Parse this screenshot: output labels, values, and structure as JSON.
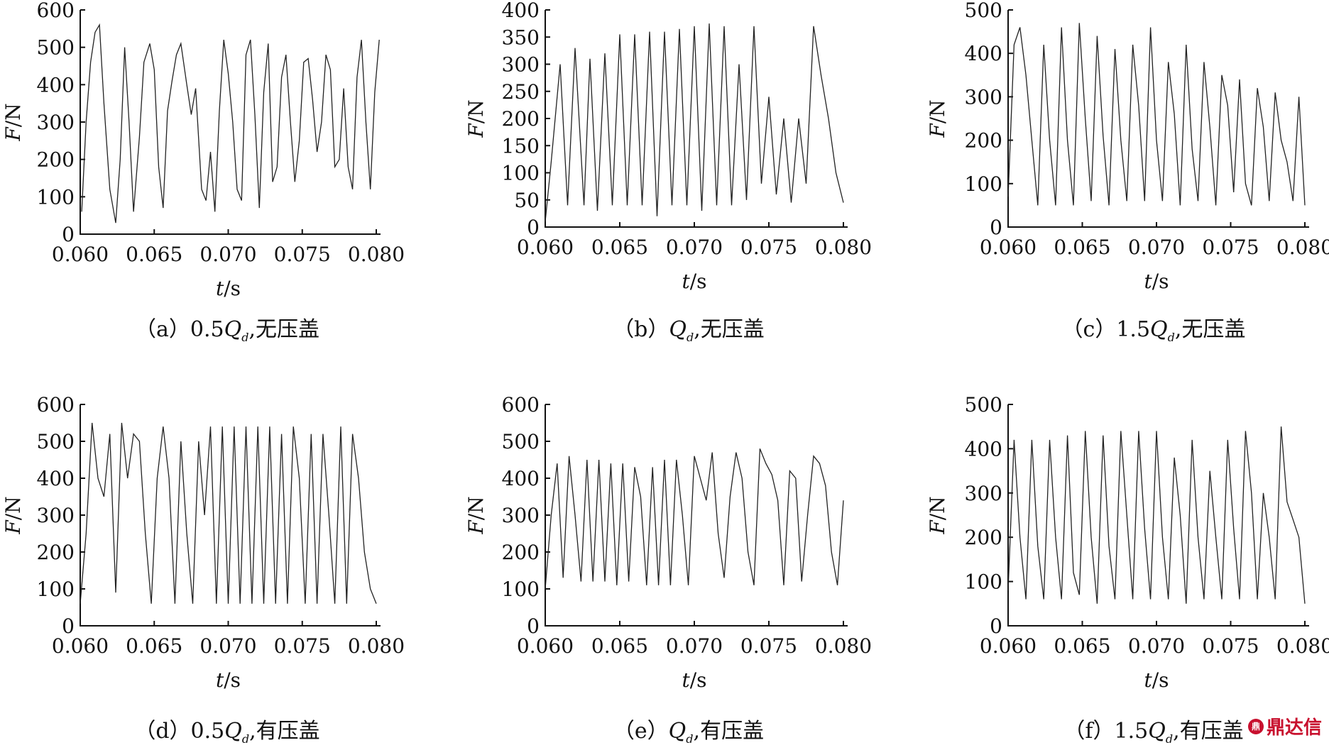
{
  "chart_data": [
    {
      "type": "line",
      "panel": "a",
      "caption_prefix": "（a）0.5",
      "caption_Q": "Q",
      "caption_sub": "d",
      "caption_suffix": ",无压盖",
      "xlabel_var": "t",
      "xlabel_unit": "/s",
      "ylabel_var": "F",
      "ylabel_unit": "/N",
      "xlim": [
        0.06,
        0.08
      ],
      "ylim": [
        0,
        600
      ],
      "xticks": [
        "0.060",
        "0.065",
        "0.070",
        "0.075",
        "0.080"
      ],
      "yticks": [
        0,
        100,
        200,
        300,
        400,
        500,
        600
      ],
      "x": [
        0.0601,
        0.0604,
        0.0607,
        0.061,
        0.0613,
        0.0616,
        0.062,
        0.0624,
        0.0627,
        0.063,
        0.0633,
        0.0636,
        0.064,
        0.0643,
        0.0647,
        0.065,
        0.0653,
        0.0656,
        0.0659,
        0.0662,
        0.0665,
        0.0668,
        0.0672,
        0.0675,
        0.0678,
        0.0682,
        0.0685,
        0.0688,
        0.0691,
        0.0694,
        0.0697,
        0.07,
        0.0703,
        0.0706,
        0.0709,
        0.0712,
        0.0715,
        0.0718,
        0.0721,
        0.0724,
        0.0727,
        0.073,
        0.0733,
        0.0736,
        0.0739,
        0.0742,
        0.0745,
        0.0748,
        0.0751,
        0.0754,
        0.0757,
        0.076,
        0.0763,
        0.0766,
        0.0769,
        0.0772,
        0.0775,
        0.0778,
        0.0781,
        0.0784,
        0.0787,
        0.079,
        0.0793,
        0.0796,
        0.0799,
        0.0802
      ],
      "y": [
        60,
        300,
        460,
        540,
        560,
        350,
        120,
        30,
        200,
        500,
        300,
        60,
        260,
        460,
        510,
        440,
        180,
        70,
        330,
        410,
        480,
        510,
        400,
        320,
        390,
        120,
        90,
        220,
        60,
        330,
        520,
        430,
        300,
        120,
        90,
        480,
        520,
        320,
        70,
        380,
        510,
        140,
        180,
        420,
        480,
        300,
        140,
        250,
        460,
        470,
        360,
        220,
        300,
        480,
        440,
        180,
        200,
        390,
        180,
        120,
        420,
        520,
        300,
        120,
        380,
        520
      ]
    },
    {
      "type": "line",
      "panel": "b",
      "caption_prefix": "（b）",
      "caption_Q": "Q",
      "caption_sub": "d",
      "caption_suffix": ",无压盖",
      "xlabel_var": "t",
      "xlabel_unit": "/s",
      "ylabel_var": "F",
      "ylabel_unit": "/N",
      "xlim": [
        0.06,
        0.08
      ],
      "ylim": [
        0,
        400
      ],
      "xticks": [
        "0.060",
        "0.065",
        "0.070",
        "0.075",
        "0.080"
      ],
      "yticks": [
        0,
        50,
        100,
        150,
        200,
        250,
        300,
        350,
        400
      ],
      "x": [
        0.06,
        0.0604,
        0.061,
        0.0615,
        0.062,
        0.0626,
        0.063,
        0.0635,
        0.064,
        0.0645,
        0.065,
        0.0655,
        0.066,
        0.0665,
        0.067,
        0.0675,
        0.068,
        0.0685,
        0.069,
        0.0695,
        0.07,
        0.0705,
        0.071,
        0.0715,
        0.072,
        0.0725,
        0.073,
        0.0735,
        0.074,
        0.0745,
        0.075,
        0.0755,
        0.076,
        0.0765,
        0.077,
        0.0775,
        0.078,
        0.0785,
        0.079,
        0.0795,
        0.08
      ],
      "y": [
        10,
        120,
        300,
        40,
        330,
        40,
        310,
        30,
        320,
        40,
        355,
        40,
        355,
        40,
        360,
        20,
        360,
        40,
        365,
        40,
        370,
        30,
        375,
        40,
        370,
        40,
        300,
        50,
        370,
        80,
        240,
        60,
        200,
        45,
        200,
        80,
        370,
        280,
        200,
        100,
        45
      ]
    },
    {
      "type": "line",
      "panel": "c",
      "caption_prefix": "（c）1.5",
      "caption_Q": "Q",
      "caption_sub": "d",
      "caption_suffix": ",无压盖",
      "xlabel_var": "t",
      "xlabel_unit": "/s",
      "ylabel_var": "F",
      "ylabel_unit": "/N",
      "xlim": [
        0.06,
        0.08
      ],
      "ylim": [
        0,
        500
      ],
      "xticks": [
        "0.060",
        "0.065",
        "0.070",
        "0.075",
        "0.080"
      ],
      "yticks": [
        0,
        100,
        200,
        300,
        400,
        500
      ],
      "x": [
        0.06,
        0.0604,
        0.0608,
        0.0612,
        0.0616,
        0.062,
        0.0624,
        0.0628,
        0.0632,
        0.0636,
        0.064,
        0.0644,
        0.0648,
        0.0652,
        0.0656,
        0.066,
        0.0664,
        0.0668,
        0.0672,
        0.0676,
        0.068,
        0.0684,
        0.0688,
        0.0692,
        0.0696,
        0.07,
        0.0704,
        0.0708,
        0.0712,
        0.0716,
        0.072,
        0.0724,
        0.0728,
        0.0732,
        0.0736,
        0.074,
        0.0744,
        0.0748,
        0.0752,
        0.0756,
        0.076,
        0.0764,
        0.0768,
        0.0772,
        0.0776,
        0.078,
        0.0784,
        0.0788,
        0.0792,
        0.0796,
        0.08
      ],
      "y": [
        70,
        420,
        460,
        350,
        200,
        50,
        420,
        200,
        50,
        460,
        200,
        50,
        470,
        250,
        60,
        440,
        210,
        50,
        410,
        200,
        60,
        420,
        280,
        60,
        460,
        200,
        60,
        380,
        260,
        50,
        420,
        180,
        60,
        380,
        230,
        50,
        350,
        280,
        80,
        340,
        100,
        50,
        320,
        230,
        60,
        310,
        200,
        150,
        60,
        300,
        50
      ]
    },
    {
      "type": "line",
      "panel": "d",
      "caption_prefix": "（d）0.5",
      "caption_Q": "Q",
      "caption_sub": "d",
      "caption_suffix": ",有压盖",
      "xlabel_var": "t",
      "xlabel_unit": "/s",
      "ylabel_var": "F",
      "ylabel_unit": "/N",
      "xlim": [
        0.06,
        0.08
      ],
      "ylim": [
        0,
        600
      ],
      "xticks": [
        "0.060",
        "0.065",
        "0.070",
        "0.075",
        "0.080"
      ],
      "yticks": [
        0,
        100,
        200,
        300,
        400,
        500,
        600
      ],
      "x": [
        0.06,
        0.0604,
        0.0608,
        0.0612,
        0.0616,
        0.062,
        0.0624,
        0.0628,
        0.0632,
        0.0636,
        0.064,
        0.0644,
        0.0648,
        0.0652,
        0.0656,
        0.066,
        0.0664,
        0.0668,
        0.0672,
        0.0676,
        0.068,
        0.0684,
        0.0688,
        0.0692,
        0.0696,
        0.07,
        0.0704,
        0.0708,
        0.0712,
        0.0716,
        0.072,
        0.0724,
        0.0728,
        0.0732,
        0.0736,
        0.074,
        0.0744,
        0.0748,
        0.0752,
        0.0756,
        0.076,
        0.0764,
        0.0768,
        0.0772,
        0.0776,
        0.078,
        0.0784,
        0.0788,
        0.0792,
        0.0796,
        0.08
      ],
      "y": [
        60,
        250,
        550,
        400,
        350,
        520,
        90,
        550,
        400,
        520,
        500,
        250,
        60,
        400,
        540,
        400,
        60,
        500,
        250,
        60,
        500,
        300,
        540,
        60,
        540,
        60,
        540,
        60,
        540,
        60,
        540,
        60,
        540,
        60,
        520,
        60,
        540,
        400,
        60,
        520,
        60,
        520,
        300,
        60,
        540,
        60,
        520,
        400,
        200,
        100,
        60
      ]
    },
    {
      "type": "line",
      "panel": "e",
      "caption_prefix": "（e）",
      "caption_Q": "Q",
      "caption_sub": "d",
      "caption_suffix": ",有压盖",
      "xlabel_var": "t",
      "xlabel_unit": "/s",
      "ylabel_var": "F",
      "ylabel_unit": "/N",
      "xlim": [
        0.06,
        0.08
      ],
      "ylim": [
        0,
        600
      ],
      "xticks": [
        "0.060",
        "0.065",
        "0.070",
        "0.075",
        "0.080"
      ],
      "yticks": [
        0,
        100,
        200,
        300,
        400,
        500,
        600
      ],
      "x": [
        0.06,
        0.0604,
        0.0608,
        0.0612,
        0.0616,
        0.062,
        0.0624,
        0.0628,
        0.0632,
        0.0636,
        0.064,
        0.0644,
        0.0648,
        0.0652,
        0.0656,
        0.066,
        0.0664,
        0.0668,
        0.0672,
        0.0676,
        0.068,
        0.0684,
        0.0688,
        0.0692,
        0.0696,
        0.07,
        0.0704,
        0.0708,
        0.0712,
        0.0716,
        0.072,
        0.0724,
        0.0728,
        0.0732,
        0.0736,
        0.074,
        0.0744,
        0.0748,
        0.0752,
        0.0756,
        0.076,
        0.0764,
        0.0768,
        0.0772,
        0.0776,
        0.078,
        0.0784,
        0.0788,
        0.0792,
        0.0796,
        0.08
      ],
      "y": [
        100,
        300,
        440,
        130,
        460,
        300,
        120,
        450,
        120,
        450,
        120,
        440,
        110,
        440,
        120,
        430,
        350,
        110,
        430,
        110,
        450,
        110,
        450,
        300,
        110,
        460,
        400,
        340,
        470,
        250,
        130,
        350,
        470,
        400,
        200,
        110,
        480,
        440,
        410,
        340,
        110,
        420,
        400,
        120,
        300,
        460,
        440,
        380,
        200,
        110,
        340
      ]
    },
    {
      "type": "line",
      "panel": "f",
      "caption_prefix": "（f）1.5",
      "caption_Q": "Q",
      "caption_sub": "d",
      "caption_suffix": ",有压盖",
      "xlabel_var": "t",
      "xlabel_unit": "/s",
      "ylabel_var": "F",
      "ylabel_unit": "/N",
      "xlim": [
        0.06,
        0.08
      ],
      "ylim": [
        0,
        500
      ],
      "xticks": [
        "0.060",
        "0.065",
        "0.070",
        "0.075",
        "0.080"
      ],
      "yticks": [
        0,
        100,
        200,
        300,
        400,
        500
      ],
      "x": [
        0.06,
        0.0604,
        0.0608,
        0.0612,
        0.0616,
        0.062,
        0.0624,
        0.0628,
        0.0632,
        0.0636,
        0.064,
        0.0644,
        0.0648,
        0.0652,
        0.0656,
        0.066,
        0.0664,
        0.0668,
        0.0672,
        0.0676,
        0.068,
        0.0684,
        0.0688,
        0.0692,
        0.0696,
        0.07,
        0.0704,
        0.0708,
        0.0712,
        0.0716,
        0.072,
        0.0724,
        0.0728,
        0.0732,
        0.0736,
        0.074,
        0.0744,
        0.0748,
        0.0752,
        0.0756,
        0.076,
        0.0764,
        0.0768,
        0.0772,
        0.0776,
        0.078,
        0.0784,
        0.0788,
        0.0792,
        0.0796,
        0.08
      ],
      "y": [
        80,
        420,
        200,
        60,
        420,
        180,
        60,
        420,
        200,
        60,
        430,
        120,
        70,
        440,
        200,
        50,
        430,
        180,
        60,
        440,
        250,
        60,
        440,
        220,
        60,
        440,
        200,
        60,
        380,
        250,
        50,
        420,
        200,
        60,
        350,
        200,
        60,
        420,
        220,
        60,
        440,
        300,
        60,
        300,
        200,
        60,
        450,
        280,
        240,
        200,
        50
      ]
    }
  ],
  "watermark": {
    "text": "鼎达信",
    "icon": "dingdaxin-logo-icon"
  }
}
